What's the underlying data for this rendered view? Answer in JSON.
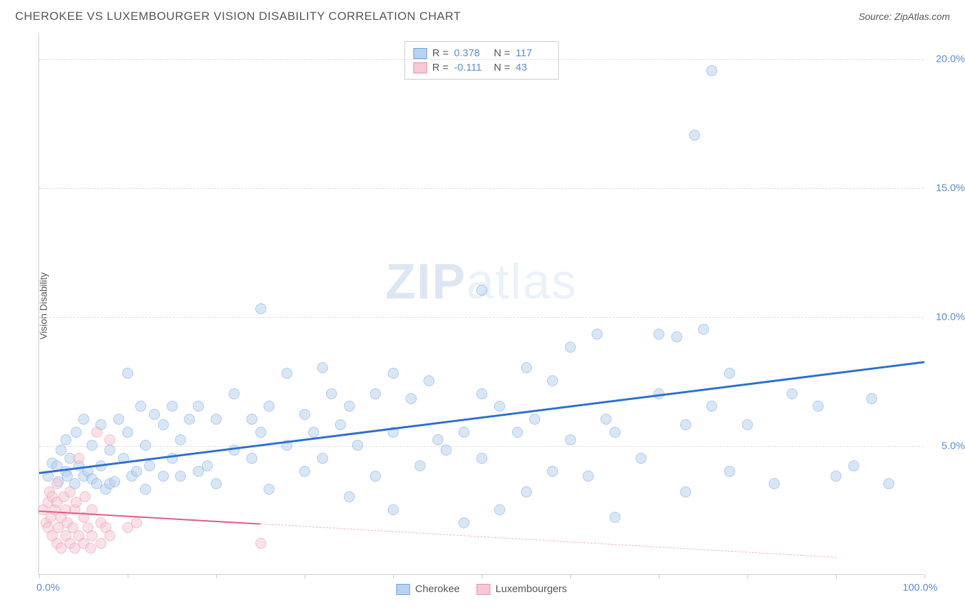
{
  "header": {
    "title": "CHEROKEE VS LUXEMBOURGER VISION DISABILITY CORRELATION CHART",
    "source_label": "Source: ",
    "source_name": "ZipAtlas.com"
  },
  "watermark": {
    "zip": "ZIP",
    "atlas": "atlas"
  },
  "chart": {
    "type": "scatter",
    "y_label": "Vision Disability",
    "xlim": [
      0,
      100
    ],
    "ylim": [
      0,
      21
    ],
    "x_tick_positions": [
      0,
      10,
      20,
      30,
      40,
      50,
      60,
      70,
      80,
      90,
      100
    ],
    "x_min_label": "0.0%",
    "x_max_label": "100.0%",
    "y_ticks": [
      {
        "value": 5,
        "label": "5.0%"
      },
      {
        "value": 10,
        "label": "10.0%"
      },
      {
        "value": 15,
        "label": "15.0%"
      },
      {
        "value": 20,
        "label": "20.0%"
      }
    ],
    "grid_color": "#dddddd",
    "axis_color": "#cccccc",
    "background_color": "#ffffff",
    "marker_radius": 8,
    "marker_opacity": 0.55,
    "series": [
      {
        "name": "Cherokee",
        "color_fill": "#b9d2f0",
        "color_stroke": "#6fa0dd",
        "R": "0.378",
        "N": "117",
        "trend": {
          "x1": 0,
          "y1": 4.0,
          "x2": 100,
          "y2": 8.3,
          "color": "#2d6fd0",
          "width": 3,
          "dash": false
        },
        "points": [
          [
            1,
            3.8
          ],
          [
            1.5,
            4.3
          ],
          [
            2,
            4.2
          ],
          [
            2.2,
            3.6
          ],
          [
            2.5,
            4.8
          ],
          [
            3,
            4.0
          ],
          [
            3,
            5.2
          ],
          [
            3.2,
            3.8
          ],
          [
            3.5,
            4.5
          ],
          [
            4,
            3.5
          ],
          [
            4.2,
            5.5
          ],
          [
            4.5,
            4.2
          ],
          [
            5,
            3.8
          ],
          [
            5,
            6.0
          ],
          [
            5.5,
            4.0
          ],
          [
            6,
            3.7
          ],
          [
            6,
            5.0
          ],
          [
            6.5,
            3.5
          ],
          [
            7,
            4.2
          ],
          [
            7,
            5.8
          ],
          [
            7.5,
            3.3
          ],
          [
            8,
            3.5
          ],
          [
            8,
            4.8
          ],
          [
            8.5,
            3.6
          ],
          [
            9,
            6.0
          ],
          [
            9.5,
            4.5
          ],
          [
            10,
            7.8
          ],
          [
            10,
            5.5
          ],
          [
            10.5,
            3.8
          ],
          [
            11,
            4.0
          ],
          [
            11.5,
            6.5
          ],
          [
            12,
            3.3
          ],
          [
            12,
            5.0
          ],
          [
            12.5,
            4.2
          ],
          [
            13,
            6.2
          ],
          [
            14,
            3.8
          ],
          [
            14,
            5.8
          ],
          [
            15,
            4.5
          ],
          [
            15,
            6.5
          ],
          [
            16,
            3.8
          ],
          [
            16,
            5.2
          ],
          [
            17,
            6.0
          ],
          [
            18,
            4.0
          ],
          [
            18,
            6.5
          ],
          [
            19,
            4.2
          ],
          [
            20,
            3.5
          ],
          [
            20,
            6.0
          ],
          [
            22,
            7.0
          ],
          [
            22,
            4.8
          ],
          [
            24,
            6.0
          ],
          [
            24,
            4.5
          ],
          [
            25,
            5.5
          ],
          [
            25,
            10.3
          ],
          [
            26,
            3.3
          ],
          [
            26,
            6.5
          ],
          [
            28,
            7.8
          ],
          [
            28,
            5.0
          ],
          [
            30,
            4.0
          ],
          [
            30,
            6.2
          ],
          [
            31,
            5.5
          ],
          [
            32,
            8.0
          ],
          [
            32,
            4.5
          ],
          [
            33,
            7.0
          ],
          [
            34,
            5.8
          ],
          [
            35,
            3.0
          ],
          [
            35,
            6.5
          ],
          [
            36,
            5.0
          ],
          [
            38,
            7.0
          ],
          [
            38,
            3.8
          ],
          [
            40,
            7.8
          ],
          [
            40,
            5.5
          ],
          [
            40,
            2.5
          ],
          [
            42,
            6.8
          ],
          [
            43,
            4.2
          ],
          [
            44,
            7.5
          ],
          [
            45,
            5.2
          ],
          [
            46,
            4.8
          ],
          [
            48,
            5.5
          ],
          [
            48,
            2.0
          ],
          [
            50,
            7.0
          ],
          [
            50,
            4.5
          ],
          [
            50,
            11.0
          ],
          [
            52,
            6.5
          ],
          [
            52,
            2.5
          ],
          [
            54,
            5.5
          ],
          [
            55,
            8.0
          ],
          [
            55,
            3.2
          ],
          [
            56,
            6.0
          ],
          [
            58,
            7.5
          ],
          [
            58,
            4.0
          ],
          [
            60,
            8.8
          ],
          [
            60,
            5.2
          ],
          [
            62,
            3.8
          ],
          [
            63,
            9.3
          ],
          [
            64,
            6.0
          ],
          [
            65,
            2.2
          ],
          [
            65,
            5.5
          ],
          [
            68,
            4.5
          ],
          [
            70,
            9.3
          ],
          [
            70,
            7.0
          ],
          [
            72,
            9.2
          ],
          [
            73,
            5.8
          ],
          [
            73,
            3.2
          ],
          [
            74,
            17.0
          ],
          [
            75,
            9.5
          ],
          [
            76,
            19.5
          ],
          [
            76,
            6.5
          ],
          [
            78,
            4.0
          ],
          [
            78,
            7.8
          ],
          [
            80,
            5.8
          ],
          [
            83,
            3.5
          ],
          [
            85,
            7.0
          ],
          [
            88,
            6.5
          ],
          [
            90,
            3.8
          ],
          [
            92,
            4.2
          ],
          [
            94,
            6.8
          ],
          [
            96,
            3.5
          ]
        ]
      },
      {
        "name": "Luxembourgers",
        "color_fill": "#f6c9d4",
        "color_stroke": "#e890a8",
        "R": "-0.111",
        "N": "43",
        "trend_solid": {
          "x1": 0,
          "y1": 2.5,
          "x2": 25,
          "y2": 2.0,
          "color": "#e05a82",
          "width": 2.5,
          "dash": false
        },
        "trend_dash": {
          "x1": 25,
          "y1": 2.0,
          "x2": 90,
          "y2": 0.7,
          "color": "#f0b0c2",
          "width": 1.5,
          "dash": true
        },
        "points": [
          [
            0.5,
            2.5
          ],
          [
            0.8,
            2.0
          ],
          [
            1,
            2.8
          ],
          [
            1,
            1.8
          ],
          [
            1.2,
            3.2
          ],
          [
            1.3,
            2.2
          ],
          [
            1.5,
            1.5
          ],
          [
            1.5,
            3.0
          ],
          [
            1.8,
            2.5
          ],
          [
            2,
            1.2
          ],
          [
            2,
            2.8
          ],
          [
            2,
            3.5
          ],
          [
            2.2,
            1.8
          ],
          [
            2.5,
            2.2
          ],
          [
            2.5,
            1.0
          ],
          [
            2.8,
            3.0
          ],
          [
            3,
            1.5
          ],
          [
            3,
            2.5
          ],
          [
            3.2,
            2.0
          ],
          [
            3.5,
            1.2
          ],
          [
            3.5,
            3.2
          ],
          [
            3.8,
            1.8
          ],
          [
            4,
            2.5
          ],
          [
            4,
            1.0
          ],
          [
            4.2,
            2.8
          ],
          [
            4.5,
            1.5
          ],
          [
            4.5,
            4.5
          ],
          [
            5,
            1.2
          ],
          [
            5,
            2.2
          ],
          [
            5.2,
            3.0
          ],
          [
            5.5,
            1.8
          ],
          [
            5.8,
            1.0
          ],
          [
            6,
            2.5
          ],
          [
            6,
            1.5
          ],
          [
            6.5,
            5.5
          ],
          [
            7,
            1.2
          ],
          [
            7,
            2.0
          ],
          [
            7.5,
            1.8
          ],
          [
            8,
            5.2
          ],
          [
            8,
            1.5
          ],
          [
            10,
            1.8
          ],
          [
            11,
            2.0
          ],
          [
            25,
            1.2
          ]
        ]
      }
    ],
    "legend_bottom": [
      {
        "label": "Cherokee",
        "fill": "#b9d2f0",
        "stroke": "#6fa0dd"
      },
      {
        "label": "Luxembourgers",
        "fill": "#f6c9d4",
        "stroke": "#e890a8"
      }
    ]
  }
}
